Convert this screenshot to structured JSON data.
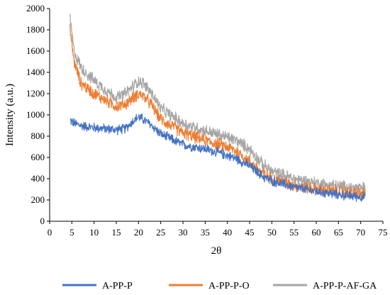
{
  "chart_data": {
    "type": "line",
    "title": "",
    "xlabel": "2θ",
    "ylabel": "Intensity (a.u.)",
    "xlim": [
      0,
      75
    ],
    "ylim": [
      0,
      2000
    ],
    "x_ticks": [
      0,
      5,
      10,
      15,
      20,
      25,
      30,
      35,
      40,
      45,
      50,
      55,
      60,
      65,
      70,
      75
    ],
    "y_ticks": [
      0,
      200,
      400,
      600,
      800,
      1000,
      1200,
      1400,
      1600,
      1800,
      2000
    ],
    "x_tick_labels": [
      "0",
      "5",
      "10",
      "15",
      "20",
      "25",
      "30",
      "35",
      "40",
      "45",
      "50",
      "55",
      "60",
      "65",
      "70",
      "75"
    ],
    "y_tick_labels": [
      "0",
      "200",
      "400",
      "600",
      "800",
      "1000",
      "1200",
      "1400",
      "1600",
      "1800",
      "2000"
    ],
    "grid": false,
    "legend_position": "bottom",
    "x": [
      4.6,
      5.5,
      7,
      10,
      15,
      17,
      19,
      20,
      21,
      23,
      25,
      30,
      35,
      40,
      42,
      45,
      48,
      50,
      55,
      60,
      65,
      70,
      71
    ],
    "series": [
      {
        "name": "A-PP-P",
        "color": "#4472C4",
        "noise": 55,
        "values": [
          950,
          920,
          900,
          880,
          860,
          870,
          950,
          980,
          960,
          900,
          820,
          720,
          680,
          620,
          590,
          520,
          420,
          380,
          320,
          280,
          250,
          230,
          230
        ]
      },
      {
        "name": "A-PP-P-O",
        "color": "#ED7D31",
        "noise": 70,
        "values": [
          1800,
          1500,
          1300,
          1200,
          1080,
          1100,
          1170,
          1200,
          1180,
          1090,
          960,
          830,
          760,
          700,
          660,
          560,
          450,
          400,
          340,
          300,
          280,
          260,
          260
        ]
      },
      {
        "name": "A-PP-P-AF-GA",
        "color": "#A5A5A5",
        "noise": 70,
        "values": [
          1900,
          1600,
          1450,
          1320,
          1160,
          1200,
          1280,
          1320,
          1300,
          1200,
          1060,
          920,
          850,
          790,
          760,
          680,
          530,
          470,
          400,
          360,
          330,
          310,
          310
        ]
      }
    ]
  }
}
